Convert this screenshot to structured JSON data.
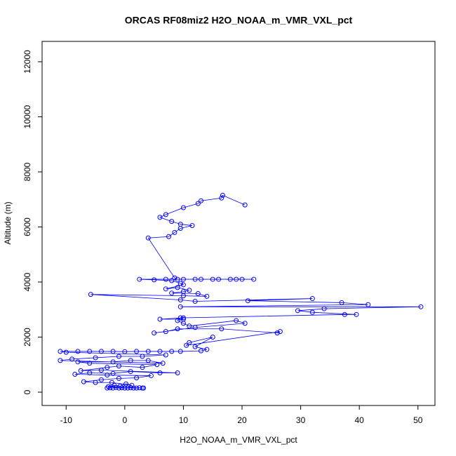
{
  "chart_data": {
    "type": "line",
    "title": "ORCAS RF08miz2 H2O_NOAA_m_VMR_VXL_pct",
    "x_label": "H2O_NOAA_m_VMR_VXL_pct",
    "y_label": "Altitude (m)",
    "color": "#0000ff",
    "markers": true,
    "grid": false,
    "xlim": [
      -14.1,
      52.9
    ],
    "ylim": [
      -484,
      12739
    ],
    "xticks": [
      -10,
      0,
      10,
      20,
      30,
      40,
      50
    ],
    "yticks": [
      0,
      2000,
      4000,
      6000,
      8000,
      10000,
      12000
    ],
    "series": [
      {
        "name": "H2O",
        "color": "#0000ff",
        "x": [
          -3,
          -2.5,
          -2,
          -1.5,
          -1,
          -0.5,
          0,
          0.5,
          1,
          1.5,
          2,
          2.5,
          3,
          3.2,
          -2.8,
          -1.8,
          -0.8,
          0.2,
          1.2,
          -2.2,
          -5,
          -7,
          -4,
          -1,
          2,
          4.5,
          -3,
          -8.5,
          -6,
          -2,
          1,
          6,
          9,
          -4,
          -7.5,
          -3,
          -1,
          3,
          5.5,
          -6,
          -8,
          -2,
          1,
          4,
          6.5,
          -11,
          -9,
          -5,
          -1,
          3,
          7,
          -10,
          -11,
          -8,
          -6,
          -4,
          -2,
          0,
          2,
          4,
          6,
          8,
          9.5,
          13,
          14,
          12,
          15,
          11,
          10.5,
          26.5,
          26,
          16.5,
          9,
          7,
          5,
          12,
          20.5,
          19,
          11,
          10,
          9,
          9.5,
          10,
          6,
          10,
          37.5,
          39.5,
          32,
          29.5,
          34,
          50.5,
          9.5,
          41.5,
          37,
          21,
          32,
          12,
          9.5,
          -5.8,
          10,
          14,
          12.5,
          8,
          10,
          11,
          9,
          7,
          10,
          9.5,
          8,
          5,
          2.5,
          7,
          10,
          12,
          15,
          18,
          20,
          22,
          19,
          16,
          13,
          9,
          8.5,
          4,
          7.5,
          8.5,
          9.5,
          11.5,
          9.5,
          8,
          6,
          7,
          10,
          12.5,
          13,
          16.5,
          16.7,
          20.5
        ],
        "values": [
          150,
          160,
          150,
          170,
          150,
          160,
          150,
          150,
          160,
          150,
          150,
          160,
          150,
          150,
          200,
          250,
          220,
          300,
          250,
          350,
          350,
          380,
          450,
          500,
          520,
          600,
          620,
          650,
          700,
          680,
          750,
          700,
          700,
          800,
          780,
          900,
          950,
          900,
          1000,
          1050,
          1100,
          1100,
          1150,
          1150,
          1050,
          1150,
          1200,
          1250,
          1300,
          1300,
          1350,
          1450,
          1480,
          1480,
          1480,
          1480,
          1480,
          1470,
          1480,
          1480,
          1480,
          1480,
          1480,
          1500,
          1550,
          1650,
          2000,
          1800,
          1700,
          2200,
          2150,
          2300,
          2300,
          2200,
          2150,
          2350,
          2500,
          2600,
          2400,
          2500,
          2600,
          2700,
          2650,
          2650,
          2700,
          2820,
          2820,
          2900,
          2960,
          3030,
          3100,
          3100,
          3180,
          3250,
          3320,
          3400,
          3300,
          3350,
          3550,
          3500,
          3480,
          3580,
          3600,
          3650,
          3700,
          3800,
          3750,
          3900,
          3950,
          4050,
          4080,
          4100,
          4100,
          4100,
          4100,
          4100,
          4100,
          4100,
          4100,
          4100,
          4100,
          4100,
          4100,
          4150,
          5600,
          5650,
          5800,
          5950,
          6050,
          6100,
          6200,
          6350,
          6450,
          6700,
          6850,
          6950,
          7050,
          7150,
          6800
        ]
      }
    ]
  }
}
